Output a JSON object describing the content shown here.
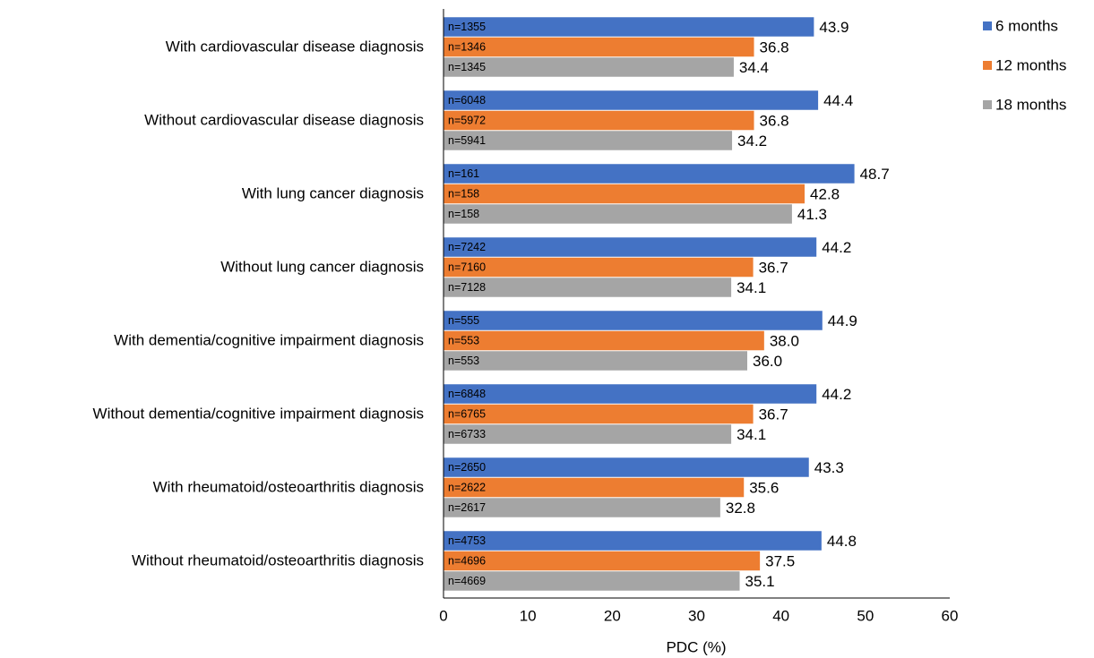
{
  "chart_data": {
    "type": "hbar",
    "x_label": "PDC (%)",
    "categories": [
      "With cardiovascular disease diagnosis",
      "Without cardiovascular disease diagnosis",
      "With lung cancer diagnosis",
      "Without lung cancer diagnosis",
      "With dementia/cognitive impairment diagnosis",
      "Without dementia/cognitive impairment diagnosis",
      "With rheumatoid/osteoarthritis diagnosis",
      "Without rheumatoid/osteoarthritis diagnosis"
    ],
    "series": [
      {
        "name": "6 months",
        "color": "#4472c4",
        "values": [
          43.9,
          44.4,
          48.7,
          44.2,
          44.9,
          44.2,
          43.3,
          44.8
        ],
        "value_labels": [
          "43.9",
          "44.4",
          "48.7",
          "44.2",
          "44.9",
          "44.2",
          "43.3",
          "44.8"
        ],
        "n_labels": [
          "n=1355",
          "n=6048",
          "n=161",
          "n=7242",
          "n=555",
          "n=6848",
          "n=2650",
          "n=4753"
        ]
      },
      {
        "name": "12 months",
        "color": "#ed7d31",
        "values": [
          36.8,
          36.8,
          42.8,
          36.7,
          38.0,
          36.7,
          35.6,
          37.5
        ],
        "value_labels": [
          "36.8",
          "36.8",
          "42.8",
          "36.7",
          "38.0",
          "36.7",
          "35.6",
          "37.5"
        ],
        "n_labels": [
          "n=1346",
          "n=5972",
          "n=158",
          "n=7160",
          "n=553",
          "n=6765",
          "n=2622",
          "n=4696"
        ]
      },
      {
        "name": "18 months",
        "color": "#a5a5a5",
        "values": [
          34.4,
          34.2,
          41.3,
          34.1,
          36.0,
          34.1,
          32.8,
          35.1
        ],
        "value_labels": [
          "34.4",
          "34.2",
          "41.3",
          "34.1",
          "36.0",
          "34.1",
          "32.8",
          "35.1"
        ],
        "n_labels": [
          "n=1345",
          "n=5941",
          "n=158",
          "n=7128",
          "n=553",
          "n=6733",
          "n=2617",
          "n=4669"
        ]
      }
    ],
    "xlim": [
      0,
      60
    ],
    "xticks": [
      0,
      10,
      20,
      30,
      40,
      50,
      60
    ],
    "grid": false,
    "legend": "top-right"
  }
}
